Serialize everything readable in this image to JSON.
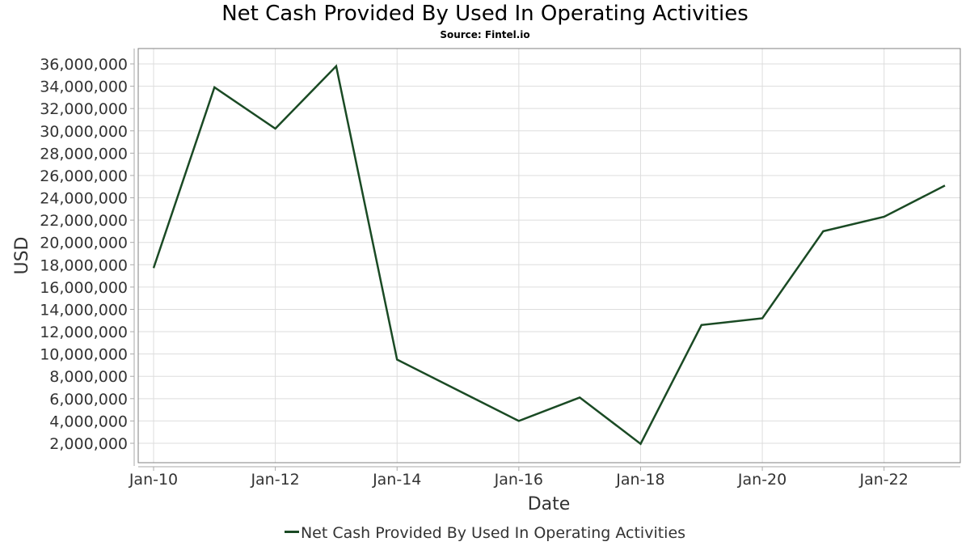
{
  "chart_data": {
    "type": "line",
    "title": "Net Cash Provided By Used In Operating Activities",
    "subtitle": "Source: Fintel.io",
    "xlabel": "Date",
    "ylabel": "USD",
    "x": [
      "Jan-10",
      "Jan-11",
      "Jan-12",
      "Jan-13",
      "Jan-14",
      "Jan-15",
      "Jan-16",
      "Jan-17",
      "Jan-18",
      "Jan-19",
      "Jan-20",
      "Jan-21",
      "Jan-22",
      "Jan-23"
    ],
    "series": [
      {
        "name": "Net Cash Provided By Used In Operating Activities",
        "color": "#1a4a24",
        "values": [
          17700000,
          33900000,
          30200000,
          35800000,
          9500000,
          6750000,
          4000000,
          6100000,
          1950000,
          12600000,
          13200000,
          21000000,
          22300000,
          25100000
        ]
      }
    ],
    "x_tick_labels": [
      "Jan-10",
      "Jan-12",
      "Jan-14",
      "Jan-16",
      "Jan-18",
      "Jan-20",
      "Jan-22"
    ],
    "y_tick_labels": [
      "2,000,000",
      "4,000,000",
      "6,000,000",
      "8,000,000",
      "10,000,000",
      "12,000,000",
      "14,000,000",
      "16,000,000",
      "18,000,000",
      "20,000,000",
      "22,000,000",
      "24,000,000",
      "26,000,000",
      "28,000,000",
      "30,000,000",
      "32,000,000",
      "34,000,000",
      "36,000,000"
    ],
    "y_ticks": [
      2000000,
      4000000,
      6000000,
      8000000,
      10000000,
      12000000,
      14000000,
      16000000,
      18000000,
      20000000,
      22000000,
      24000000,
      26000000,
      28000000,
      30000000,
      32000000,
      34000000,
      36000000
    ],
    "ylim": [
      0,
      37400000
    ],
    "grid": true,
    "legend_position": "bottom"
  },
  "header": {
    "title": "Net Cash Provided By Used In Operating Activities",
    "subtitle": "Source: Fintel.io"
  },
  "axes": {
    "xlabel": "Date",
    "ylabel": "USD"
  },
  "legend": {
    "label": "Net Cash Provided By Used In Operating Activities"
  }
}
